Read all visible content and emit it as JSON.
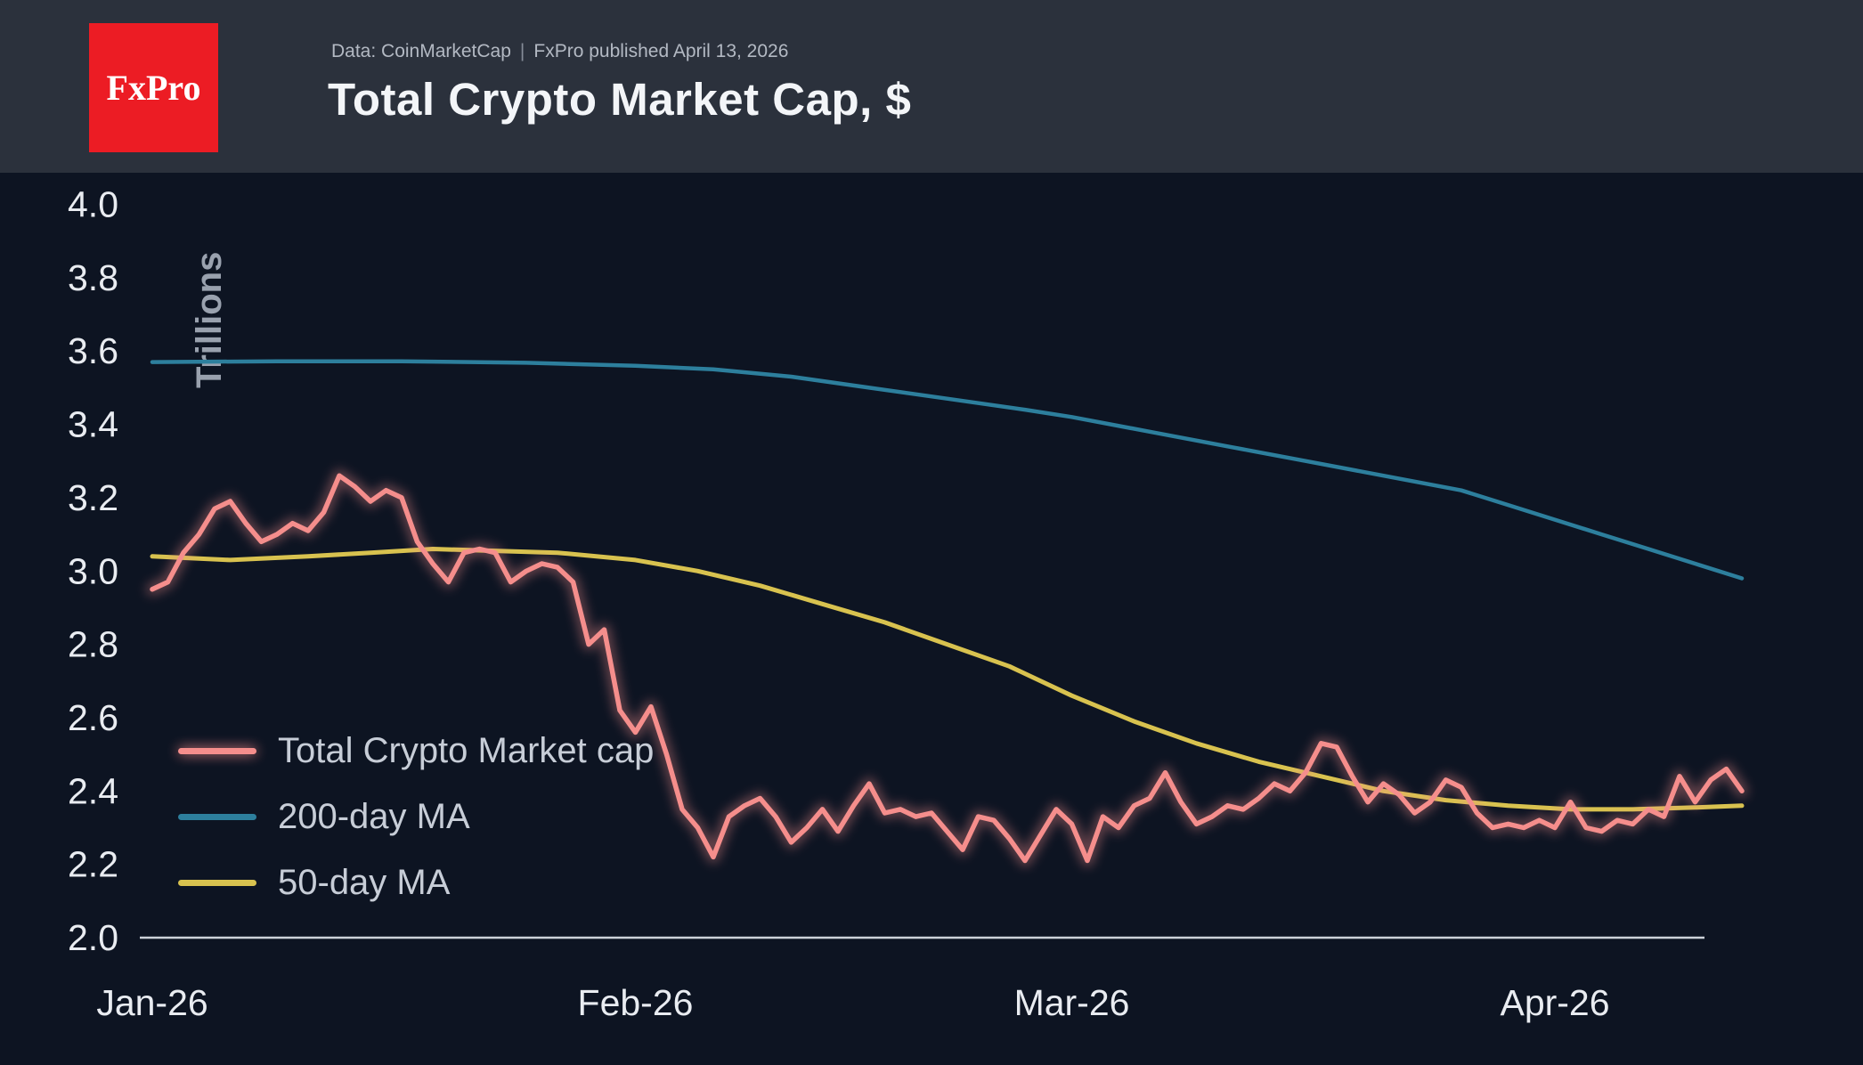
{
  "header": {
    "logo_text": "FxPro",
    "subtitle_left": "Data: CoinMarketCap",
    "subtitle_sep": "|",
    "subtitle_right": "FxPro published April 13, 2026",
    "title": "Total Crypto Market Cap, $"
  },
  "colors": {
    "background": "#0d1422",
    "header_background": "#2b313c",
    "logo_red": "#ec1c24",
    "market_cap_line": "#f58e8c",
    "ma200_line": "#2d7f9d",
    "ma50_line": "#d8c24f"
  },
  "chart_data": {
    "type": "line",
    "title": "Total Crypto Market Cap, $",
    "ylabel": "Trillions",
    "ylim": [
      2.0,
      4.0
    ],
    "ytick_step": 0.2,
    "yticks": [
      "4.0",
      "3.8",
      "3.6",
      "3.4",
      "3.2",
      "3.0",
      "2.8",
      "2.6",
      "2.4",
      "2.2",
      "2.0"
    ],
    "x_domain_days": [
      0,
      102
    ],
    "xticks": [
      {
        "day": 0,
        "label": "Jan-26"
      },
      {
        "day": 31,
        "label": "Feb-26"
      },
      {
        "day": 59,
        "label": "Mar-26"
      },
      {
        "day": 90,
        "label": "Apr-26"
      }
    ],
    "grid": false,
    "legend_position": "inside-left-bottom",
    "series": [
      {
        "name": "200-day MA",
        "color": "#2d7f9d",
        "width": 4.5,
        "glow": false,
        "points": [
          [
            0,
            3.57
          ],
          [
            8,
            3.572
          ],
          [
            16,
            3.572
          ],
          [
            24,
            3.568
          ],
          [
            31,
            3.56
          ],
          [
            36,
            3.55
          ],
          [
            41,
            3.53
          ],
          [
            46,
            3.5
          ],
          [
            51,
            3.47
          ],
          [
            56,
            3.44
          ],
          [
            59,
            3.42
          ],
          [
            64,
            3.38
          ],
          [
            69,
            3.34
          ],
          [
            74,
            3.3
          ],
          [
            79,
            3.26
          ],
          [
            84,
            3.22
          ],
          [
            87,
            3.18
          ],
          [
            90,
            3.14
          ],
          [
            93,
            3.1
          ],
          [
            96,
            3.06
          ],
          [
            99,
            3.02
          ],
          [
            102,
            2.98
          ]
        ]
      },
      {
        "name": "50-day MA",
        "color": "#d8c24f",
        "width": 5,
        "glow": false,
        "points": [
          [
            0,
            3.04
          ],
          [
            5,
            3.03
          ],
          [
            10,
            3.04
          ],
          [
            14,
            3.05
          ],
          [
            18,
            3.06
          ],
          [
            22,
            3.055
          ],
          [
            26,
            3.05
          ],
          [
            31,
            3.03
          ],
          [
            35,
            3.0
          ],
          [
            39,
            2.96
          ],
          [
            43,
            2.91
          ],
          [
            47,
            2.86
          ],
          [
            51,
            2.8
          ],
          [
            55,
            2.74
          ],
          [
            59,
            2.66
          ],
          [
            63,
            2.59
          ],
          [
            67,
            2.53
          ],
          [
            71,
            2.48
          ],
          [
            75,
            2.44
          ],
          [
            79,
            2.4
          ],
          [
            83,
            2.375
          ],
          [
            87,
            2.36
          ],
          [
            91,
            2.35
          ],
          [
            95,
            2.35
          ],
          [
            99,
            2.355
          ],
          [
            102,
            2.36
          ]
        ]
      },
      {
        "name": "Total Crypto Market cap",
        "color": "#f58e8c",
        "width": 5.5,
        "glow": true,
        "x0": 0,
        "dx": 1,
        "values": [
          2.95,
          2.97,
          3.05,
          3.1,
          3.17,
          3.19,
          3.13,
          3.08,
          3.1,
          3.13,
          3.11,
          3.16,
          3.26,
          3.23,
          3.19,
          3.22,
          3.2,
          3.08,
          3.02,
          2.97,
          3.05,
          3.06,
          3.05,
          2.97,
          3.0,
          3.02,
          3.01,
          2.97,
          2.8,
          2.84,
          2.62,
          2.56,
          2.63,
          2.5,
          2.35,
          2.3,
          2.22,
          2.33,
          2.36,
          2.38,
          2.33,
          2.26,
          2.3,
          2.35,
          2.29,
          2.36,
          2.42,
          2.34,
          2.35,
          2.33,
          2.34,
          2.29,
          2.24,
          2.33,
          2.32,
          2.27,
          2.21,
          2.28,
          2.35,
          2.31,
          2.21,
          2.33,
          2.3,
          2.36,
          2.38,
          2.45,
          2.37,
          2.31,
          2.33,
          2.36,
          2.35,
          2.38,
          2.42,
          2.4,
          2.45,
          2.53,
          2.52,
          2.44,
          2.37,
          2.42,
          2.39,
          2.34,
          2.37,
          2.43,
          2.41,
          2.34,
          2.3,
          2.31,
          2.3,
          2.32,
          2.3,
          2.37,
          2.3,
          2.29,
          2.32,
          2.31,
          2.35,
          2.33,
          2.44,
          2.37,
          2.43,
          2.46,
          2.4
        ]
      }
    ],
    "legend_order": [
      2,
      0,
      1
    ]
  }
}
